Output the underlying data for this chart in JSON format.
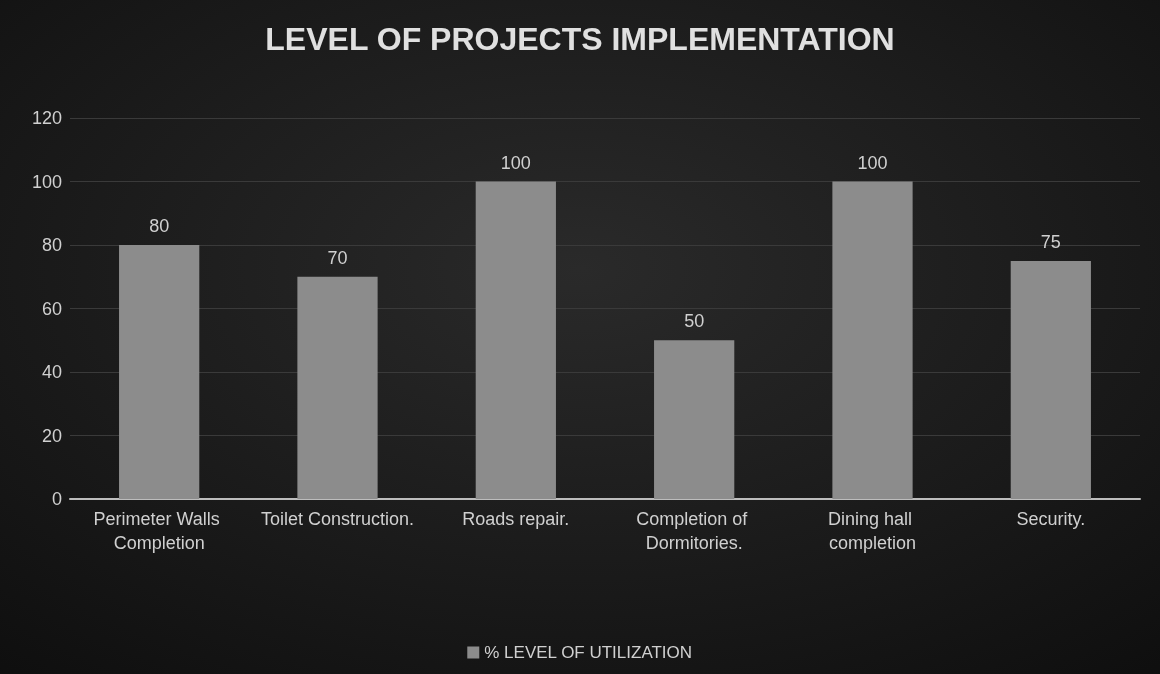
{
  "chart_data": {
    "type": "bar",
    "title": "LEVEL OF PROJECTS IMPLEMENTATION",
    "categories": [
      "Perimeter Walls Completion",
      "Toilet Construction.",
      "Roads repair.",
      "Completion of Dormitories.",
      "Dining hall completion",
      "Security."
    ],
    "series": [
      {
        "name": "% LEVEL OF UTILIZATION",
        "color": "#8c8c8c",
        "values": [
          80,
          70,
          100,
          50,
          100,
          75
        ]
      }
    ],
    "ylim": [
      0,
      120
    ],
    "yticks": [
      0,
      20,
      40,
      60,
      80,
      100,
      120
    ],
    "grid": "y",
    "legend": "bottom",
    "data_labels": true
  }
}
